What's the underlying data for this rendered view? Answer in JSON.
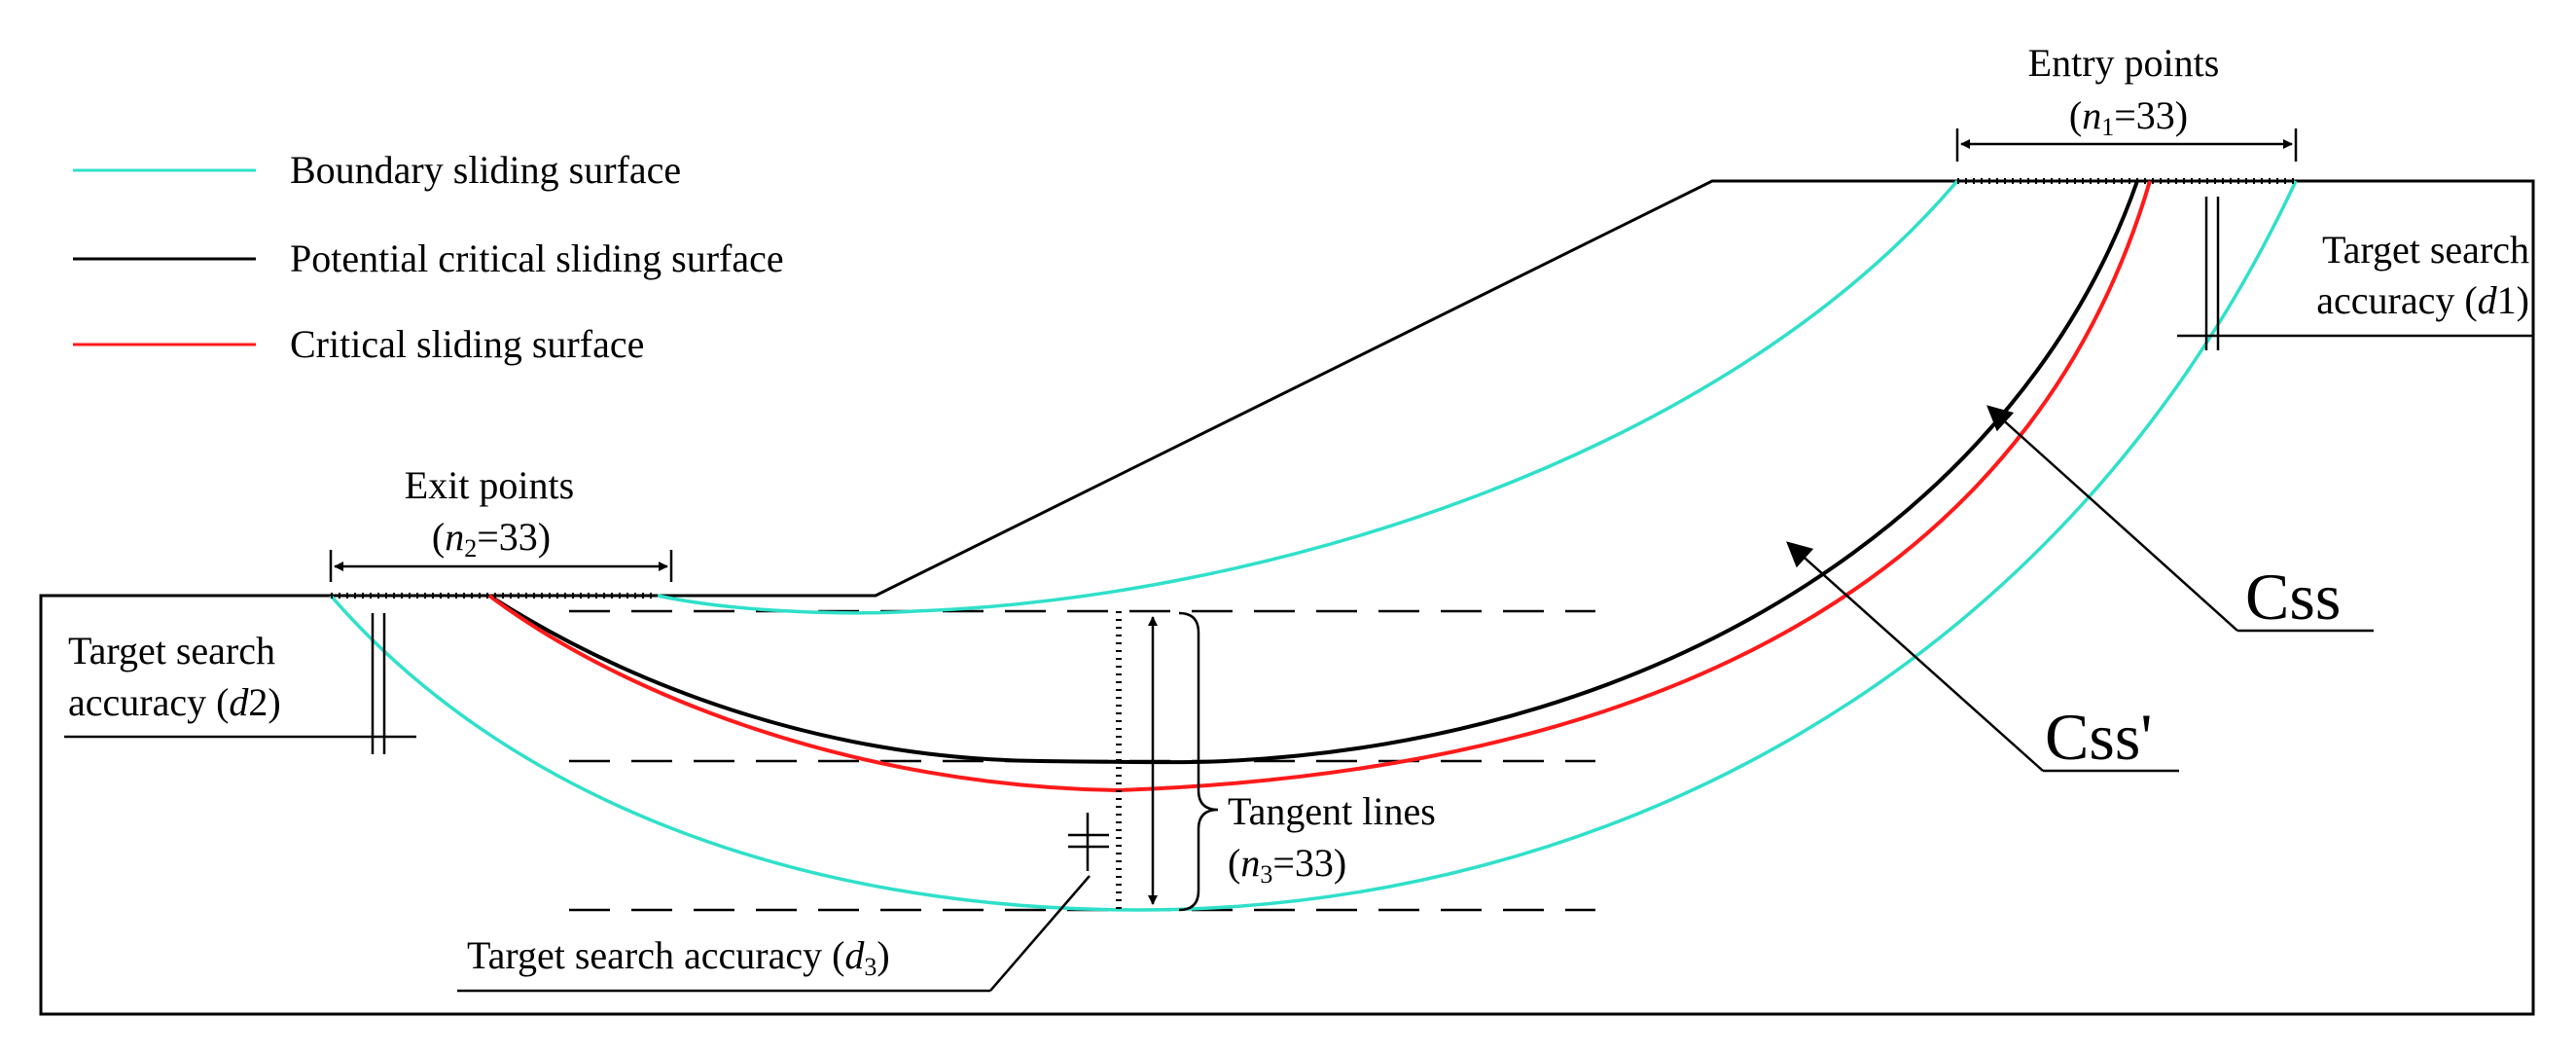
{
  "colors": {
    "boundary": "#2fe0c9",
    "potential": "#000000",
    "critical": "#ff1a1a",
    "outline": "#000000"
  },
  "legend": {
    "boundary": "Boundary sliding surface",
    "potential": "Potential critical sliding surface",
    "critical": "Critical sliding surface"
  },
  "entry": {
    "title": "Entry points",
    "n_open": "(",
    "n_var": "n",
    "n_sub": "1",
    "n_value": "=33)"
  },
  "exit": {
    "title": "Exit points",
    "n_open": "(",
    "n_var": "n",
    "n_sub": "2",
    "n_value": "=33)"
  },
  "tangent": {
    "title": "Tangent lines",
    "n_open": "(",
    "n_var": "n",
    "n_sub": "3",
    "n_value": "=33)"
  },
  "accuracy_d1": {
    "line1": "Target search",
    "line2_pre": "accuracy (",
    "var": "d",
    "sub": "1",
    "close": ")"
  },
  "accuracy_d2": {
    "line1": "Target search",
    "line2_pre": "accuracy (",
    "var": "d",
    "sub": "2",
    "close": ")"
  },
  "accuracy_d3": {
    "pre": "Target search accuracy (",
    "var": "d",
    "sub": "3",
    "close": ")"
  },
  "css_label": "Css",
  "css_prime_label": "Css'"
}
